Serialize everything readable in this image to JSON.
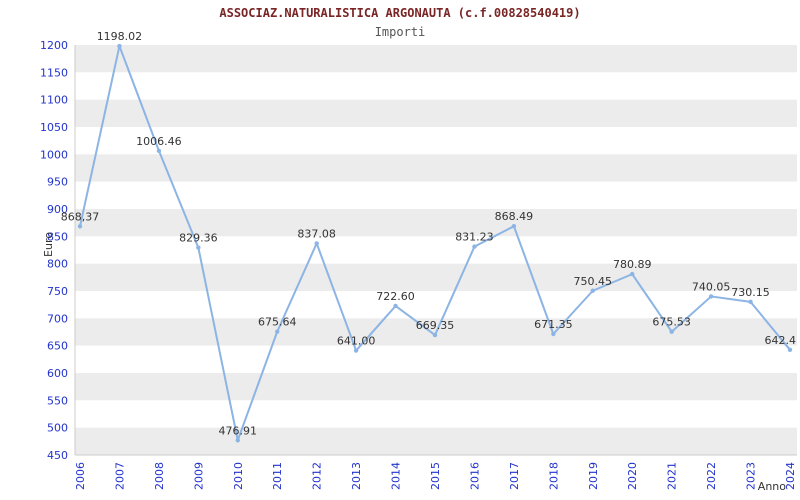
{
  "chart_data": {
    "type": "line",
    "title": "ASSOCIAZ.NATURALISTICA ARGONAUTA (c.f.00828540419)",
    "subtitle": "Importi",
    "xlabel": "Anno",
    "ylabel": "Euro",
    "x": [
      2006,
      2007,
      2008,
      2009,
      2010,
      2011,
      2012,
      2013,
      2014,
      2015,
      2016,
      2017,
      2018,
      2019,
      2020,
      2021,
      2022,
      2023,
      2024
    ],
    "values": [
      868.37,
      1198.02,
      1006.46,
      829.36,
      476.91,
      675.64,
      837.08,
      641.0,
      722.6,
      669.35,
      831.23,
      868.49,
      671.35,
      750.45,
      780.89,
      675.53,
      740.05,
      730.15,
      642.4
    ],
    "point_labels": [
      "868,37",
      "1198.02",
      "1006.46",
      "829.36",
      "476.91",
      "675.64",
      "837.08",
      "641.00",
      "722.60",
      "669.35",
      "831.23",
      "868.49",
      "671.35",
      "750.45",
      "780.89",
      "675.53",
      "740.05",
      "730.15",
      "642.4"
    ],
    "ylim": [
      450,
      1200
    ],
    "ytick_step": 50,
    "grid": "horizontal-bands",
    "legend": "none",
    "colors": {
      "line": "#8cb4e4",
      "tick_text": "#2233cc",
      "label_text": "#333333",
      "band": "#ececec",
      "band_alt": "#ffffff",
      "axis": "#cccccc",
      "title": "#7a2525",
      "subtitle": "#555555"
    }
  }
}
